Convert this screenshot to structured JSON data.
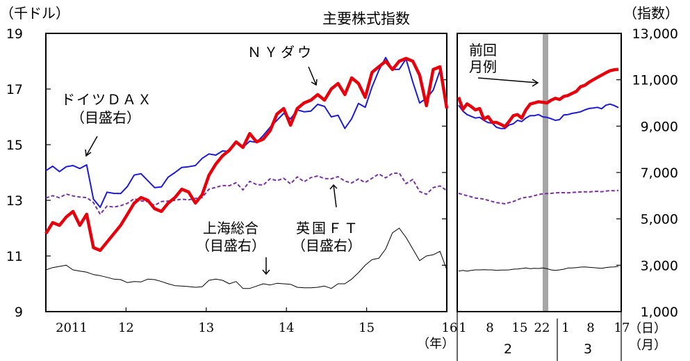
{
  "chart_data": {
    "type": "line",
    "title": "主要株式指数",
    "left_axis": {
      "unit_label": "（千ドル）",
      "ylim": [
        9,
        19
      ],
      "ticks": [
        "9",
        "11",
        "13",
        "15",
        "17",
        "19"
      ]
    },
    "right_axis": {
      "unit_label": "（指数）",
      "ylim": [
        1000,
        13000
      ],
      "ticks": [
        "1,000",
        "3,000",
        "5,000",
        "7,000",
        "9,000",
        "11,000",
        "13,000"
      ]
    },
    "x_axis": {
      "ticks": [
        "2011",
        "12",
        "13",
        "14",
        "15",
        "16"
      ],
      "unit_label": "（年）",
      "right_panel_ticks": [
        "1",
        "8",
        "15",
        "22",
        "1",
        "8",
        "17"
      ],
      "month_labels": [
        "2",
        "3"
      ],
      "day_unit_label": "（日）",
      "month_unit_label": "（月）"
    },
    "annotations": {
      "ny_dow": "ＮＹダウ",
      "dax": "ドイツＤＡＸ",
      "dax_note": "（目盛右）",
      "shanghai": "上海総合",
      "shanghai_note": "（目盛右）",
      "ftse": "英国ＦＴ",
      "ftse_note": "（目盛右）",
      "prev_report_1": "前回",
      "prev_report_2": "月例"
    },
    "series": [
      {
        "key": "ny",
        "axis": "left",
        "color": "#e8000b",
        "style": "thick",
        "monthly_start": "2011-01",
        "monthly": [
          11.8,
          12.2,
          12.1,
          12.4,
          12.6,
          12.1,
          12.5,
          11.3,
          11.2,
          11.5,
          11.8,
          12.1,
          12.5,
          12.9,
          13.1,
          13.0,
          12.7,
          12.6,
          12.9,
          13.1,
          13.4,
          13.3,
          12.9,
          13.2,
          13.9,
          14.3,
          14.6,
          14.8,
          15.1,
          14.9,
          15.4,
          15.1,
          15.2,
          15.5,
          16.1,
          16.3,
          15.7,
          16.3,
          16.5,
          16.6,
          16.8,
          16.6,
          17.0,
          17.2,
          16.8,
          17.4,
          17.2,
          16.7,
          17.6,
          17.8,
          18.0,
          17.7,
          18.0,
          18.1,
          18.0,
          17.5,
          16.4,
          17.7,
          17.8,
          16.3
        ],
        "daily": [
          10250,
          9720,
          9960,
          9840,
          9700,
          9760,
          9300,
          9410,
          9160,
          9160,
          9080,
          8980,
          9200,
          9450,
          9500,
          9350,
          9700,
          9950,
          10000,
          10050,
          10030,
          10000,
          10120,
          10200,
          10150,
          10280,
          10320,
          10410,
          10500,
          10700,
          10760,
          10890,
          11000,
          11100,
          11200,
          11300,
          11390,
          11430,
          11450
        ]
      },
      {
        "key": "dax",
        "axis": "right",
        "color": "#1a1adc",
        "style": "solid",
        "monthly_start": "2011-01",
        "monthly": [
          7080,
          7270,
          7040,
          7250,
          7300,
          7170,
          7330,
          5850,
          5500,
          6150,
          6100,
          6090,
          6400,
          6890,
          6950,
          6650,
          6350,
          6380,
          6800,
          7000,
          7220,
          7250,
          7300,
          7610,
          7800,
          7750,
          7930,
          7910,
          8350,
          8090,
          8350,
          8300,
          8600,
          8950,
          9250,
          9550,
          9310,
          9700,
          9620,
          9650,
          9940,
          9850,
          9400,
          9470,
          8900,
          9320,
          9980,
          9810,
          10690,
          11400,
          11960,
          11450,
          11450,
          11900,
          10900,
          10000,
          10200,
          10550,
          11400,
          9900
        ],
        "daily": [
          9900,
          9650,
          9500,
          9420,
          9350,
          9380,
          9250,
          9150,
          9130,
          8950,
          8900,
          8900,
          9050,
          9100,
          9250,
          9200,
          9350,
          9450,
          9450,
          9500,
          9400,
          9380,
          9320,
          9250,
          9280,
          9480,
          9500,
          9550,
          9580,
          9620,
          9700,
          9760,
          9780,
          9810,
          9750,
          9900,
          9950,
          9890,
          9800
        ]
      },
      {
        "key": "ftse",
        "axis": "right",
        "color": "#7a2fa6",
        "style": "dashed",
        "monthly_start": "2011-01",
        "monthly": [
          5900,
          6000,
          5910,
          6070,
          5990,
          5940,
          5920,
          5700,
          5200,
          5550,
          5510,
          5570,
          5670,
          5870,
          5780,
          5740,
          5580,
          5750,
          5770,
          5800,
          5850,
          5820,
          5880,
          5920,
          6280,
          6360,
          6440,
          6430,
          6560,
          6250,
          6620,
          6480,
          6460,
          6730,
          6650,
          6750,
          6510,
          6810,
          6600,
          6780,
          6850,
          6740,
          6730,
          6820,
          6630,
          6550,
          6720,
          6570,
          6750,
          6940,
          6770,
          6960,
          6980,
          6520,
          6700,
          6180,
          6060,
          6350,
          6420,
          6220
        ],
        "daily": [
          6100,
          6050,
          6000,
          5950,
          5900,
          5880,
          5850,
          5800,
          5750,
          5700,
          5680,
          5650,
          5700,
          5750,
          5820,
          5900,
          5930,
          5950,
          6000,
          6050,
          6080,
          6090,
          6100,
          6120,
          6130,
          6130,
          6120,
          6140,
          6150,
          6160,
          6170,
          6160,
          6180,
          6190,
          6170,
          6200,
          6220,
          6210,
          6230
        ]
      },
      {
        "key": "shanghai",
        "axis": "right",
        "color": "#000000",
        "style": "thin",
        "monthly_start": "2011-01",
        "monthly": [
          2800,
          2900,
          2950,
          3000,
          2800,
          2750,
          2700,
          2600,
          2550,
          2480,
          2400,
          2380,
          2250,
          2300,
          2280,
          2400,
          2380,
          2300,
          2200,
          2120,
          2100,
          2080,
          2050,
          2070,
          2350,
          2400,
          2350,
          2200,
          2300,
          2000,
          2000,
          2100,
          2200,
          2150,
          2220,
          2200,
          2180,
          2050,
          2030,
          2030,
          2050,
          2100,
          2000,
          2200,
          2200,
          2400,
          2680,
          3000,
          3240,
          3300,
          3700,
          4400,
          4600,
          4200,
          3700,
          3200,
          3400,
          3450,
          3600,
          2800
        ],
        "daily": [
          2750,
          2780,
          2750,
          2780,
          2800,
          2800,
          2810,
          2800,
          2800,
          2780,
          2790,
          2790,
          2800,
          2830,
          2840,
          2860,
          2880,
          2850,
          2870,
          2860,
          2880,
          2850,
          2800,
          2780,
          2800,
          2830,
          2880,
          2880,
          2900,
          2920,
          2930,
          2910,
          2900,
          2880,
          2870,
          2900,
          2920,
          2930,
          2950
        ]
      }
    ]
  }
}
